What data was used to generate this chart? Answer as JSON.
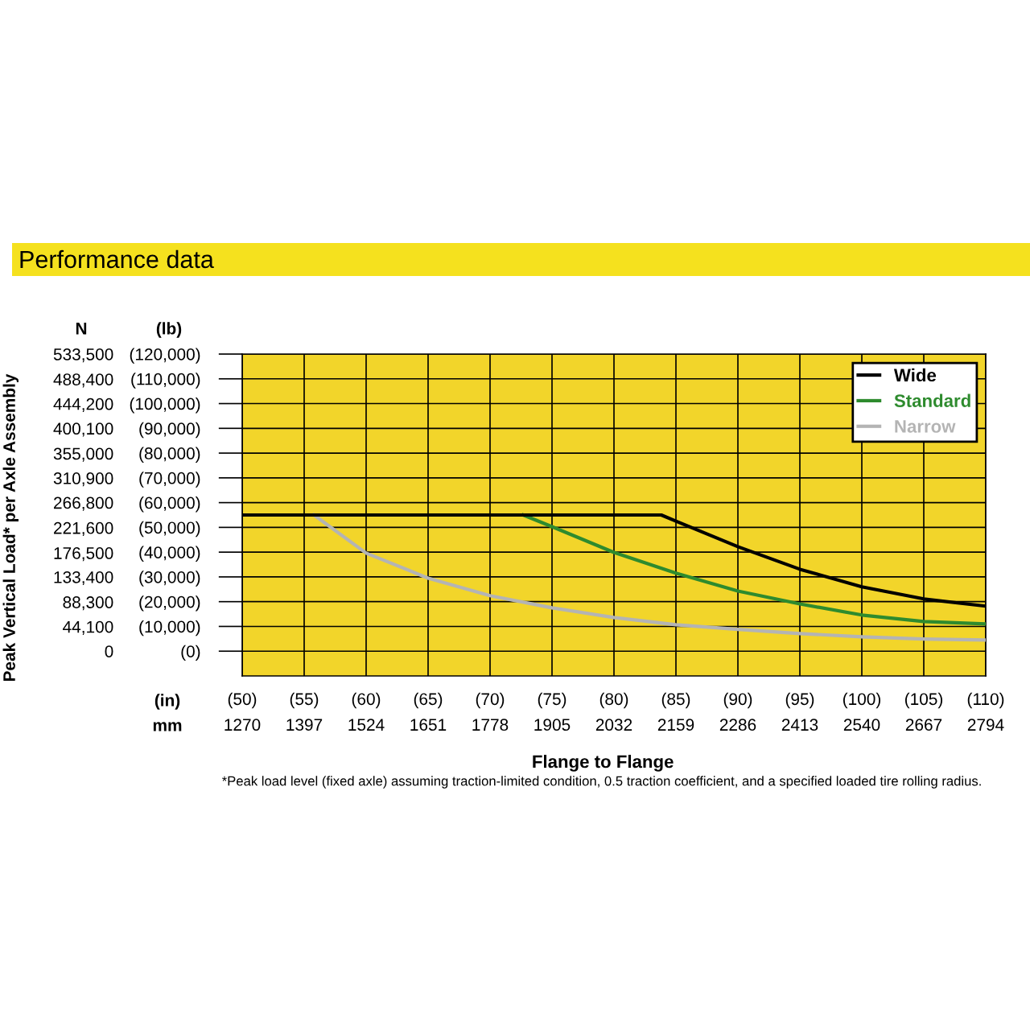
{
  "chart_data": {
    "type": "line",
    "title": "Performance data",
    "xlabel": "Flange to Flange",
    "y2label": "Peak Vertical Load* per Axle Assembly",
    "annotations": [
      "N",
      "(lb)",
      "(in)",
      "mm",
      "*Peak load level (fixed axle) assuming traction-limited condition, 0.5 traction coefficient, and a specified loaded tire rolling radius."
    ],
    "xlim": [
      1270,
      2794
    ],
    "xticks": [
      1270,
      1397,
      1524,
      1651,
      1778,
      1905,
      2032,
      2159,
      2286,
      2413,
      2540,
      2667,
      2794
    ],
    "x2lim": [
      50,
      110
    ],
    "x2ticks": [
      {
        "value": 50,
        "label": "(50)"
      },
      {
        "value": 55,
        "label": "(55)"
      },
      {
        "value": 60,
        "label": "(60)"
      },
      {
        "value": 65,
        "label": "(65)"
      },
      {
        "value": 70,
        "label": "(70)"
      },
      {
        "value": 75,
        "label": "(75)"
      },
      {
        "value": 80,
        "label": "(80)"
      },
      {
        "value": 85,
        "label": "(85)"
      },
      {
        "value": 90,
        "label": "(90)"
      },
      {
        "value": 95,
        "label": "(95)"
      },
      {
        "value": 100,
        "label": "(100)"
      },
      {
        "value": 105,
        "label": "(105)"
      },
      {
        "value": 110,
        "label": "(110)"
      }
    ],
    "ylim": [
      -10000,
      120000
    ],
    "yticks": [
      {
        "value": 0,
        "label": "(0)"
      },
      {
        "value": 10000,
        "label": "(10,000)"
      },
      {
        "value": 20000,
        "label": "(20,000)"
      },
      {
        "value": 30000,
        "label": "(30,000)"
      },
      {
        "value": 40000,
        "label": "(40,000)"
      },
      {
        "value": 50000,
        "label": "(50,000)"
      },
      {
        "value": 60000,
        "label": "(60,000)"
      },
      {
        "value": 70000,
        "label": "(70,000)"
      },
      {
        "value": 80000,
        "label": "(80,000)"
      },
      {
        "value": 90000,
        "label": "(90,000)"
      },
      {
        "value": 100000,
        "label": "(100,000)"
      },
      {
        "value": 110000,
        "label": "(110,000)"
      },
      {
        "value": 120000,
        "label": "(120,000)"
      }
    ],
    "y2lim": [
      -44450,
      533500
    ],
    "y2ticks": [
      {
        "value": 0,
        "label": "0"
      },
      {
        "value": 44100,
        "label": "44,100"
      },
      {
        "value": 88300,
        "label": "88,300"
      },
      {
        "value": 133400,
        "label": "133,400"
      },
      {
        "value": 176500,
        "label": "176,500"
      },
      {
        "value": 221600,
        "label": "221,600"
      },
      {
        "value": 266800,
        "label": "266,800"
      },
      {
        "value": 310900,
        "label": "310,900"
      },
      {
        "value": 355000,
        "label": "355,000"
      },
      {
        "value": 400100,
        "label": "400,100"
      },
      {
        "value": 444200,
        "label": "444,200"
      },
      {
        "value": 488400,
        "label": "488,400"
      },
      {
        "value": 533500,
        "label": "533,500"
      }
    ],
    "grid": true,
    "legend": "top right",
    "marker": "none",
    "line_style": "solid",
    "series": [
      {
        "name": "Narrow",
        "color": "#b4b4b4",
        "x": [
          1417,
          1524,
          1651,
          1778,
          1905,
          2032,
          2159,
          2286,
          2413,
          2540,
          2667,
          2794
        ],
        "values": [
          55000,
          39600,
          29500,
          22400,
          17500,
          13600,
          10700,
          8800,
          7100,
          5800,
          4900,
          4500
        ]
      },
      {
        "name": "Standard",
        "color": "#2e8b2e",
        "x": [
          1846,
          1905,
          2032,
          2159,
          2286,
          2413,
          2540,
          2667,
          2794
        ],
        "values": [
          55000,
          50300,
          39900,
          31500,
          24300,
          19100,
          14600,
          12000,
          11000
        ]
      },
      {
        "name": "Wide",
        "color": "#000000",
        "x": [
          1270,
          2129,
          2159,
          2286,
          2413,
          2540,
          2667,
          2794
        ],
        "values": [
          55000,
          55000,
          52500,
          42200,
          33100,
          26000,
          21100,
          18200
        ]
      }
    ]
  }
}
